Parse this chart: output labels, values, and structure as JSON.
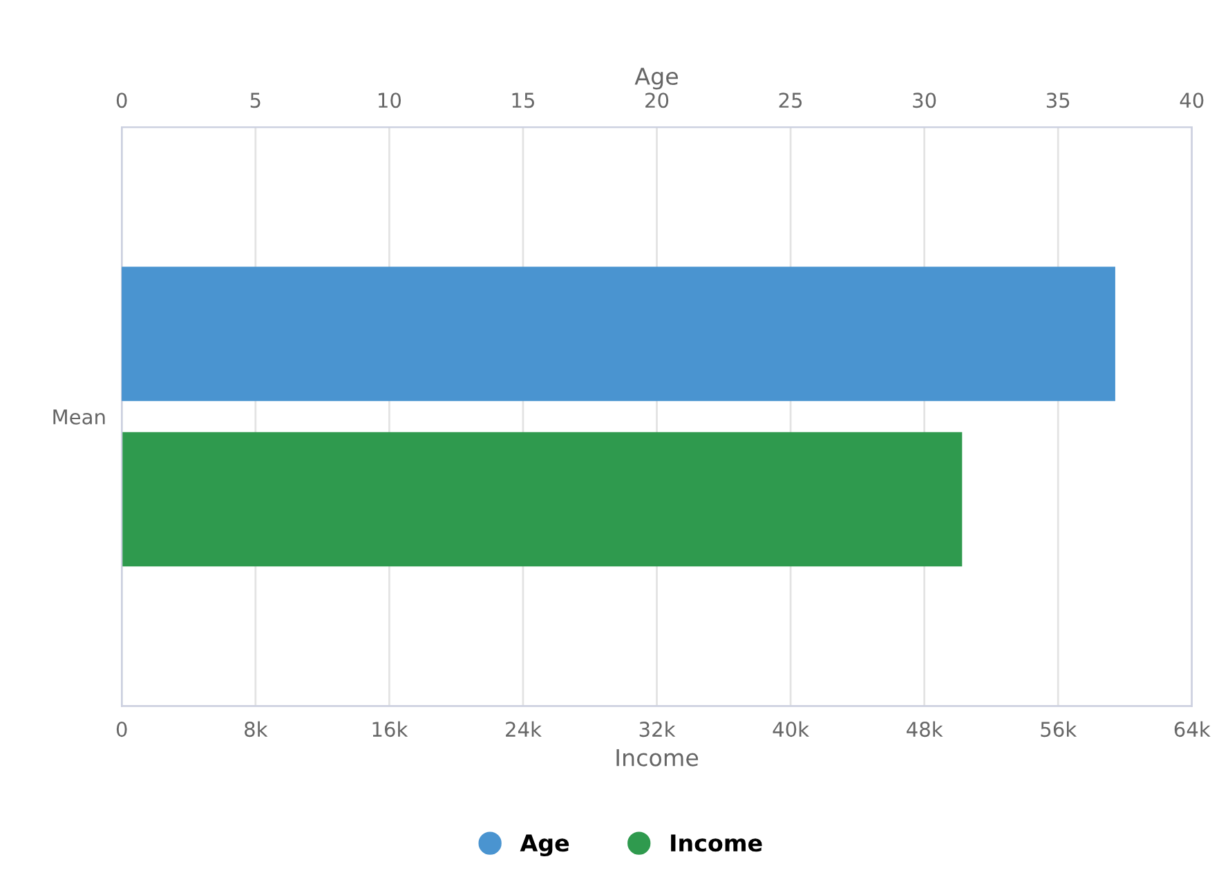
{
  "chart_data": {
    "type": "bar",
    "orientation": "horizontal",
    "categories": [
      "Mean"
    ],
    "series": [
      {
        "name": "Age",
        "color": "#4a94d0",
        "values": [
          37.1
        ],
        "axis": "x2"
      },
      {
        "name": "Income",
        "color": "#2f9a4e",
        "values": [
          50200
        ]
      }
    ],
    "xlabel": "Income",
    "x2label": "Age",
    "xlim": [
      0,
      64000
    ],
    "xticks": [
      0,
      {
        "value": 8000,
        "label": "8k"
      },
      {
        "value": 16000,
        "label": "16k"
      },
      {
        "value": 24000,
        "label": "24k"
      },
      {
        "value": 32000,
        "label": "32k"
      },
      {
        "value": 40000,
        "label": "40k"
      },
      {
        "value": 48000,
        "label": "48k"
      },
      {
        "value": 56000,
        "label": "56k"
      },
      {
        "value": 64000,
        "label": "64k"
      }
    ],
    "x2lim": [
      0,
      40
    ],
    "x2ticks": [
      0,
      5,
      10,
      15,
      20,
      25,
      30,
      35,
      40
    ],
    "grid": "x",
    "legend": "bottom"
  }
}
